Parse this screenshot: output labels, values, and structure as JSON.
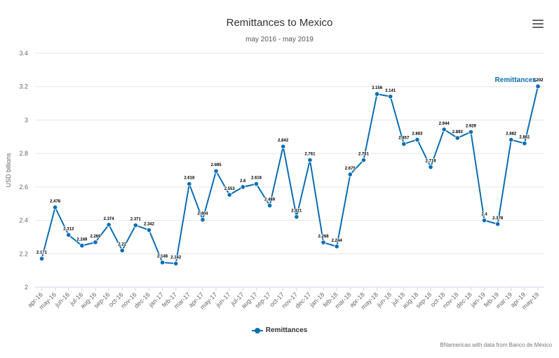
{
  "title": "Remittances to Mexico",
  "subtitle": "may 2016 - may 2019",
  "menu_icon": "hamburger-menu-icon",
  "credits": "BNamericas with data from Banco de México",
  "series_color": "#0a6eb4",
  "chart_data": {
    "type": "line",
    "ylabel": "USD billions",
    "ylim": [
      2,
      3.4
    ],
    "yticks": [
      2,
      2.2,
      2.4,
      2.6,
      2.8,
      3,
      3.2,
      3.4
    ],
    "grid": true,
    "legend_position": "bottom-center",
    "end_label": "Remittances",
    "categories": [
      "apr-16",
      "may-16",
      "jun-16",
      "jul-16",
      "aug-16",
      "sep-16",
      "oct-16",
      "nov-16",
      "dec-16",
      "jan-17",
      "feb-17",
      "mar-17",
      "apr-17",
      "may-17",
      "jun-17",
      "jul-17",
      "aug-17",
      "sep-17",
      "oct-17",
      "nov-17",
      "dec-17",
      "jan-18",
      "feb-18",
      "mar-18",
      "apr-18",
      "may-18",
      "jun-18",
      "jul-18",
      "aug-18",
      "sep-18",
      "oct-18",
      "nov-18",
      "dec-18",
      "jan-19",
      "feb-19",
      "mar-19",
      "apr-19",
      "may-19"
    ],
    "series": [
      {
        "name": "Remittances",
        "values": [
          2.171,
          2.478,
          2.313,
          2.249,
          2.269,
          2.374,
          2.22,
          2.371,
          2.342,
          2.148,
          2.142,
          2.618,
          2.404,
          2.695,
          2.553,
          2.6,
          2.618,
          2.489,
          2.842,
          2.421,
          2.761,
          2.268,
          2.244,
          2.675,
          2.761,
          3.156,
          3.141,
          2.857,
          2.883,
          2.719,
          2.944,
          2.893,
          2.929,
          2.4,
          2.378,
          2.882,
          2.861,
          3.202
        ],
        "labels": [
          "2.171",
          "2.478",
          "2.313",
          "2.249",
          "2.269",
          "2.374",
          "2.22",
          "2.371",
          "2.342",
          "2.148",
          "2.142",
          "2.618",
          "2.404",
          "2.695",
          "2.553",
          "2.6",
          "2.618",
          "2.489",
          "2.842",
          "2.421",
          "2.761",
          "2.268",
          "2.244",
          "2.675",
          "2.761",
          "3.156",
          "3.141",
          "2.857",
          "2.883",
          "2.719",
          "2.944",
          "2.893",
          "2.929",
          "2.4",
          "2.378",
          "2.882",
          "2.861",
          "3.202"
        ]
      }
    ]
  }
}
